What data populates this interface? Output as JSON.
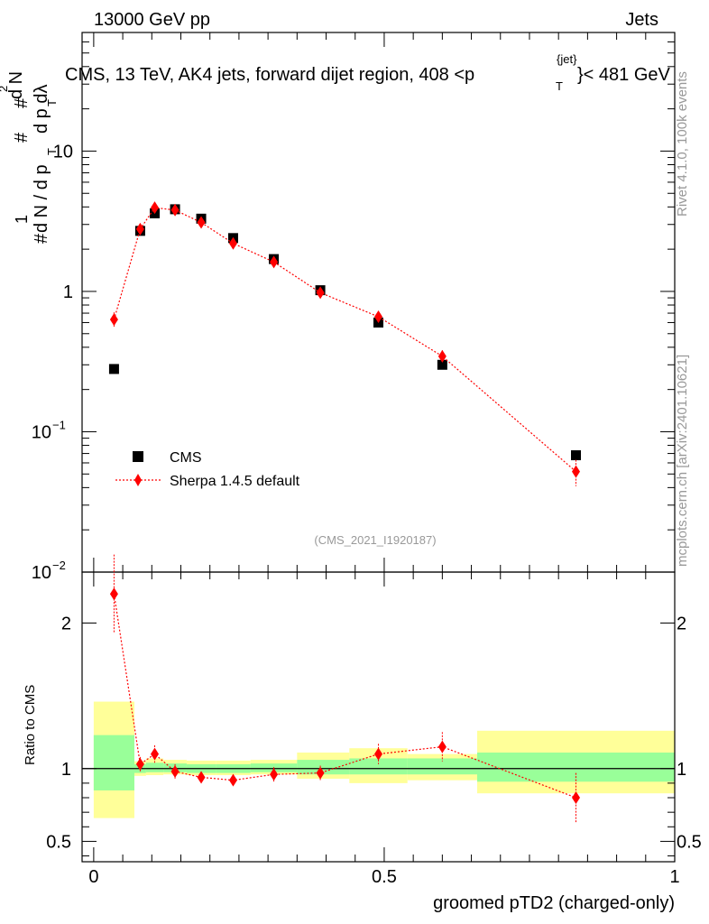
{
  "header": {
    "left": "13000 GeV pp",
    "right": "Jets"
  },
  "side_text": {
    "rivet": "Rivet 4.1.0,  100k events",
    "mcplots": "mcplots.cern.ch [arXiv:2401.10621]"
  },
  "colors": {
    "data": "#000000",
    "mc": "#ff0000",
    "band_inner": "#99ff99",
    "band_outer": "#ffff99",
    "watermark": "#999999"
  },
  "chart_data": [
    {
      "type": "scatter",
      "panel": "main",
      "title": "CMS, 13 TeV, AK4 jets, forward dijet region, 408 <p_T^{jet}< 481 GeV",
      "ylabel": "1/(dN/dp_T) d^2N/(dp_T dλ)",
      "ylabel_parts": {
        "frac_top": "1",
        "frac_bot": "d N / d p",
        "num": "d N",
        "den": "d p  dλ",
        "sub": "T",
        "sup": "2",
        "hash": "#"
      },
      "title_parts": {
        "main": "CMS, 13 TeV, AK4 jets, forward dijet region, 408 <p",
        "sub": "T",
        "sup": "{jet}",
        "tail": "}< 481 GeV"
      },
      "yscale": "log",
      "ylim": [
        0.01,
        70
      ],
      "xlim": [
        -0.02,
        1.0
      ],
      "ytick_labels": [
        "1",
        "10"
      ],
      "ytick_exp_labels": [
        {
          "base": "10",
          "exp": "−1"
        },
        {
          "base": "10",
          "exp": "−2"
        }
      ],
      "watermark": "(CMS_2021_I1920187)",
      "legend": {
        "position": "bottom-left",
        "entries": [
          "CMS",
          "Sherpa 1.4.5 default"
        ]
      },
      "series": [
        {
          "name": "CMS",
          "marker": "square",
          "x": [
            0.035,
            0.08,
            0.105,
            0.14,
            0.185,
            0.24,
            0.31,
            0.39,
            0.49,
            0.6,
            0.83
          ],
          "y": [
            0.28,
            2.7,
            3.6,
            3.85,
            3.3,
            2.4,
            1.7,
            1.02,
            0.6,
            0.3,
            0.068
          ]
        },
        {
          "name": "Sherpa 1.4.5 default",
          "marker": "diamond",
          "x": [
            0.035,
            0.08,
            0.105,
            0.14,
            0.185,
            0.24,
            0.31,
            0.39,
            0.49,
            0.6,
            0.83
          ],
          "y": [
            0.63,
            2.78,
            3.95,
            3.8,
            3.1,
            2.2,
            1.62,
            0.98,
            0.66,
            0.345,
            0.052
          ],
          "yerr": [
            0.08,
            0.14,
            0.18,
            0.17,
            0.14,
            0.11,
            0.09,
            0.06,
            0.05,
            0.035,
            0.011
          ]
        }
      ]
    },
    {
      "type": "scatter",
      "panel": "ratio",
      "xlabel": "groomed pTD2 (charged-only)",
      "ylabel": "Ratio to CMS",
      "ylim": [
        0.36,
        2.35
      ],
      "xlim": [
        -0.02,
        1.0
      ],
      "xtick_labels": [
        "0",
        "0.5",
        "1"
      ],
      "ytick_labels": [
        "0.5",
        "1",
        "2"
      ],
      "bands": {
        "edges": [
          0.0,
          0.07,
          0.09,
          0.12,
          0.16,
          0.21,
          0.27,
          0.35,
          0.44,
          0.54,
          0.66,
          1.0
        ],
        "inner": [
          [
            0.85,
            1.23
          ],
          [
            0.97,
            1.03
          ],
          [
            0.975,
            1.04
          ],
          [
            0.975,
            1.035
          ],
          [
            0.97,
            1.03
          ],
          [
            0.97,
            1.03
          ],
          [
            0.975,
            1.035
          ],
          [
            0.96,
            1.06
          ],
          [
            0.96,
            1.07
          ],
          [
            0.96,
            1.07
          ],
          [
            0.91,
            1.11
          ]
        ],
        "outer": [
          [
            0.66,
            1.46
          ],
          [
            0.95,
            1.05
          ],
          [
            0.955,
            1.07
          ],
          [
            0.96,
            1.06
          ],
          [
            0.955,
            1.055
          ],
          [
            0.955,
            1.055
          ],
          [
            0.96,
            1.06
          ],
          [
            0.93,
            1.11
          ],
          [
            0.9,
            1.14
          ],
          [
            0.92,
            1.1
          ],
          [
            0.83,
            1.26
          ]
        ]
      },
      "series": [
        {
          "name": "Sherpa 1.4.5 default",
          "marker": "diamond",
          "x": [
            0.035,
            0.08,
            0.105,
            0.14,
            0.185,
            0.24,
            0.31,
            0.39,
            0.49,
            0.6,
            0.83
          ],
          "y": [
            2.2,
            1.03,
            1.1,
            0.98,
            0.94,
            0.92,
            0.96,
            0.97,
            1.1,
            1.15,
            0.8
          ],
          "yerr": [
            0.27,
            0.05,
            0.06,
            0.05,
            0.04,
            0.04,
            0.05,
            0.05,
            0.07,
            0.1,
            0.17
          ]
        }
      ]
    }
  ]
}
